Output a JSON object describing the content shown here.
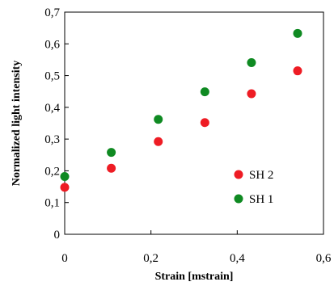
{
  "chart_data": {
    "type": "scatter",
    "xlabel": "Strain [mstrain]",
    "ylabel": "Normalized light intensity",
    "xlim": [
      0,
      0.6
    ],
    "ylim": [
      0,
      0.7
    ],
    "x_ticks": [
      "0",
      "0,2",
      "0,4",
      "0,6"
    ],
    "y_ticks": [
      "0",
      "0,1",
      "0,2",
      "0,3",
      "0,4",
      "0,5",
      "0,6",
      "0,7"
    ],
    "x_tick_values": [
      0,
      0.2,
      0.4,
      0.6
    ],
    "y_tick_values": [
      0,
      0.1,
      0.2,
      0.3,
      0.4,
      0.5,
      0.6,
      0.7
    ],
    "grid": false,
    "legend_position": "bottom-right",
    "series": [
      {
        "name": "SH 2",
        "color": "#ee1c24",
        "points": [
          {
            "x": 0.0,
            "y": 0.148
          },
          {
            "x": 0.108,
            "y": 0.208
          },
          {
            "x": 0.217,
            "y": 0.292
          },
          {
            "x": 0.325,
            "y": 0.352
          },
          {
            "x": 0.433,
            "y": 0.443
          },
          {
            "x": 0.54,
            "y": 0.515
          }
        ]
      },
      {
        "name": "SH 1",
        "color": "#0f8a22",
        "points": [
          {
            "x": 0.0,
            "y": 0.182
          },
          {
            "x": 0.108,
            "y": 0.258
          },
          {
            "x": 0.217,
            "y": 0.362
          },
          {
            "x": 0.325,
            "y": 0.449
          },
          {
            "x": 0.433,
            "y": 0.541
          },
          {
            "x": 0.54,
            "y": 0.633
          }
        ]
      }
    ]
  }
}
